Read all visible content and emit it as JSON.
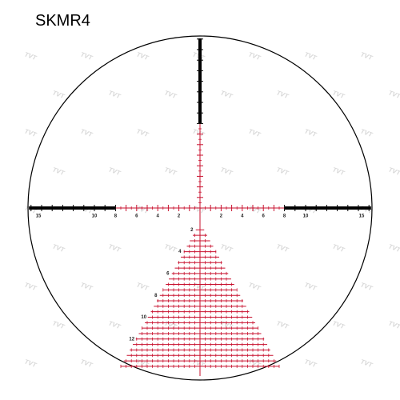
{
  "title": "SKMR4",
  "watermark": "TVT",
  "horizontal_labels": {
    "left": [
      "15",
      "10",
      "8",
      "6",
      "4",
      "2"
    ],
    "right": [
      "2",
      "4",
      "6",
      "8",
      "10",
      "15"
    ]
  },
  "tree_labels": [
    "2",
    "4",
    "6",
    "8",
    "10",
    "12"
  ]
}
